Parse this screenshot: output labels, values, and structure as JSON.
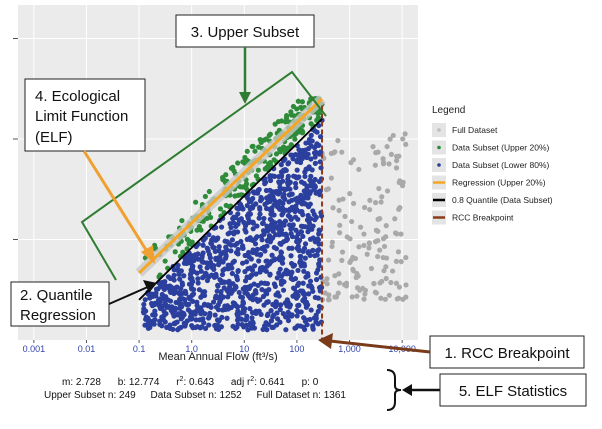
{
  "chart_data": {
    "type": "scatter",
    "title": "",
    "xlabel": "Mean Annual Flow (ft³/s)",
    "ylabel": "",
    "x_scale": "log",
    "xlim": [
      0.0005,
      20000
    ],
    "ylim": [
      0,
      1
    ],
    "x_ticks": [
      {
        "value": 0.001,
        "label": "0.001"
      },
      {
        "value": 0.01,
        "label": "0.01"
      },
      {
        "value": 0.1,
        "label": "0.1"
      },
      {
        "value": 1,
        "label": "1.0"
      },
      {
        "value": 10,
        "label": "10"
      },
      {
        "value": 100,
        "label": "100"
      },
      {
        "value": 1000,
        "label": "1,000"
      },
      {
        "value": 10000,
        "label": "10,000"
      }
    ],
    "grid": true,
    "legend": {
      "title": "Legend",
      "position": "right",
      "entries": [
        {
          "label": "Full Dataset",
          "kind": "point",
          "color": "#bdbdbd"
        },
        {
          "label": "Data Subset (Upper 20%)",
          "kind": "point",
          "color": "#2e8b3a"
        },
        {
          "label": "Data Subset (Lower 80%)",
          "kind": "point",
          "color": "#2b3f9e"
        },
        {
          "label": "Regression (Upper 20%)",
          "kind": "line",
          "color": "#f5a623"
        },
        {
          "label": "0.8 Quantile (Data Subset)",
          "kind": "line",
          "color": "#000000"
        },
        {
          "label": "RCC Breakpoint",
          "kind": "line",
          "color": "#8b3a1a"
        }
      ]
    },
    "series": [
      {
        "name": "Full Dataset",
        "color": "#a9a9a9",
        "x_range": [
          300,
          12000
        ],
        "y_range": [
          0.12,
          0.62
        ]
      },
      {
        "name": "Data Subset (Upper 20%)",
        "color": "#2e8b3a",
        "x_range": [
          0.1,
          300
        ],
        "y_range": [
          0.12,
          0.72
        ]
      },
      {
        "name": "Data Subset (Lower 80%)",
        "color": "#2b3f9e",
        "x_range": [
          0.12,
          300
        ],
        "y_range": [
          0.03,
          0.62
        ]
      }
    ],
    "regression_line": {
      "x": [
        0.1,
        300
      ],
      "y": [
        0.2,
        0.72
      ],
      "color": "#f5a623"
    },
    "quantile_line": {
      "x": [
        0.1,
        300
      ],
      "y": [
        0.12,
        0.66
      ],
      "color": "#000000"
    },
    "breakpoint": {
      "x": 300,
      "color": "#8b3a1a"
    }
  },
  "callouts": {
    "upper_subset": "3. Upper Subset",
    "elf_line1": "4. Ecological",
    "elf_line2": "Limit Function",
    "elf_line3": "(ELF)",
    "quantile_line1": "2. Quantile",
    "quantile_line2": "Regression",
    "rcc": "1. RCC Breakpoint",
    "elf_stats": "5. ELF Statistics"
  },
  "stats": {
    "m_label": "m:",
    "m": "2.728",
    "b_label": "b:",
    "b": "12.774",
    "r2_label": "r",
    "r2_sup": "2",
    "r2": ": 0.643",
    "adj_label": "adj r",
    "adj_sup": "2",
    "adj_r2": ": 0.641",
    "p_label": "p:",
    "p": "0",
    "upper_label": "Upper Subset n:",
    "upper_n": "249",
    "data_label": "Data Subset n:",
    "data_n": "1252",
    "full_label": "Full Dataset n:",
    "full_n": "1361"
  }
}
